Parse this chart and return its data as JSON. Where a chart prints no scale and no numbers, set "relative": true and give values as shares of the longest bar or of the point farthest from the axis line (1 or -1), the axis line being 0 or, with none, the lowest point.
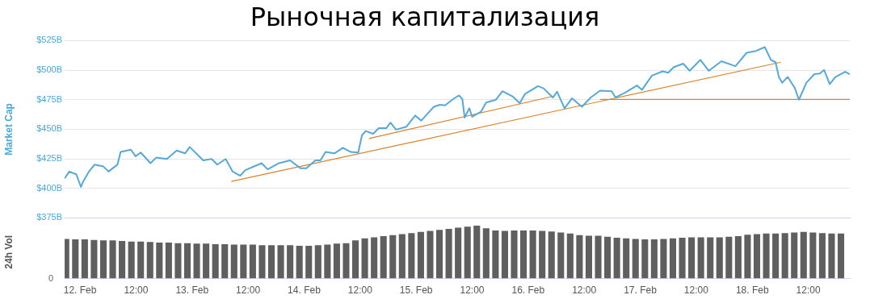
{
  "chart_data": [
    {
      "type": "line",
      "title": "Рыночная капитализация",
      "ylabel": "Market Cap",
      "xlim": [
        "--02-11T20:42",
        "--02-18T20:54"
      ],
      "ylim": [
        375,
        525
      ],
      "yticks": [
        {
          "value": 375,
          "label": "$375B"
        },
        {
          "value": 400,
          "label": "$400B"
        },
        {
          "value": 425,
          "label": "$425B"
        },
        {
          "value": 450,
          "label": "$450B"
        },
        {
          "value": 475,
          "label": "$475B"
        },
        {
          "value": 500,
          "label": "$500B"
        },
        {
          "value": 525,
          "label": "$525B"
        }
      ],
      "grid": "y",
      "legend": false,
      "tick_labels": "y",
      "marker": "none",
      "series": [
        {
          "color": "#56a9d6",
          "x": [
            "--02-11T20:42",
            "--02-11T21:42",
            "--02-11T23:12",
            "--02-12T00:12",
            "--02-12T00:42",
            "--02-12T01:54",
            "--02-12T03:06",
            "--02-12T05:00",
            "--02-12T06:06",
            "--02-12T08:00",
            "--02-12T08:42",
            "--02-12T10:54",
            "--02-12T11:54",
            "--02-12T13:00",
            "--02-12T15:06",
            "--02-12T16:18",
            "--02-12T18:36",
            "--02-12T20:42",
            "--02-12T22:30",
            "--02-12T23:30",
            "--02-13T02:24",
            "--02-13T04:12",
            "--02-13T05:24",
            "--02-13T07:12",
            "--02-13T08:42",
            "--02-13T10:18",
            "--02-13T11:24",
            "--02-13T14:54",
            "--02-13T16:12",
            "--02-13T18:36",
            "--02-13T21:00",
            "--02-13T23:12",
            "--02-14T00:30",
            "--02-14T02:24",
            "--02-14T03:30",
            "--02-14T04:36",
            "--02-14T06:30",
            "--02-14T08:18",
            "--02-14T10:00",
            "--02-14T11:36",
            "--02-14T12:24",
            "--02-14T13:12",
            "--02-14T14:48",
            "--02-14T16:00",
            "--02-14T17:36",
            "--02-14T18:30",
            "--02-14T19:42",
            "--02-14T21:54",
            "--02-14T23:48",
            "--02-15T01:06",
            "--02-15T03:06",
            "--02-15T03:48",
            "--02-15T05:06",
            "--02-15T06:12",
            "--02-15T07:54",
            "--02-15T09:12",
            "--02-15T09:54",
            "--02-15T10:24",
            "--02-15T11:24",
            "--02-15T12:00",
            "--02-15T13:54",
            "--02-15T15:00",
            "--02-15T17:06",
            "--02-15T18:30",
            "--02-15T20:48",
            "--02-15T22:12",
            "--02-15T23:18",
            "--02-16T02:06",
            "--02-16T03:18",
            "--02-16T05:18",
            "--02-16T06:12",
            "--02-16T07:48",
            "--02-16T09:24",
            "--02-16T11:30",
            "--02-16T13:24",
            "--02-16T15:24",
            "--02-16T17:54",
            "--02-16T18:42",
            "--02-16T20:48",
            "--02-16T23:18",
            "--02-17T00:24",
            "--02-17T02:30",
            "--02-17T04:48",
            "--02-17T06:00",
            "--02-17T07:12",
            "--02-17T09:12",
            "--02-17T10:36",
            "--02-17T12:54",
            "--02-17T14:42",
            "--02-17T17:24",
            "--02-17T20:24",
            "--02-17T22:48",
            "--02-18T00:48",
            "--02-18T02:42",
            "--02-18T04:00",
            "--02-18T05:00",
            "--02-18T05:42",
            "--02-18T06:24",
            "--02-18T07:36",
            "--02-18T09:06",
            "--02-18T10:00",
            "--02-18T11:36",
            "--02-18T13:18",
            "--02-18T14:30",
            "--02-18T15:24",
            "--02-18T16:36",
            "--02-18T17:48",
            "--02-18T19:54",
            "--02-18T20:54"
          ],
          "values": [
            408.3,
            414.2,
            411.9,
            401.2,
            406,
            414.2,
            420.1,
            418.5,
            414.2,
            420,
            430.8,
            432.7,
            427.2,
            430.3,
            421.3,
            426,
            424.9,
            432,
            429.6,
            435,
            423.7,
            424.9,
            420.1,
            424.9,
            414.2,
            410.7,
            415.4,
            421.3,
            416.1,
            421.3,
            423.7,
            417.1,
            417.1,
            423.7,
            423.7,
            430.8,
            429.6,
            434.3,
            430.8,
            430.3,
            445,
            448.5,
            446.2,
            450.9,
            450.9,
            455.6,
            449.7,
            452.1,
            461.6,
            457.3,
            466,
            469,
            470.7,
            470.2,
            475.5,
            478.6,
            475.5,
            459.9,
            467.8,
            460.6,
            464.9,
            472.6,
            475,
            482.2,
            477.4,
            472.1,
            479.8,
            486.5,
            484.6,
            476.9,
            481.7,
            467.8,
            476.2,
            469,
            476.9,
            482.7,
            482.2,
            476.9,
            481,
            487,
            483.4,
            495.4,
            499,
            497.8,
            502.6,
            505.5,
            499.5,
            508.7,
            499.5,
            507.5,
            503.4,
            514.7,
            516.3,
            519.5,
            508.7,
            506.7,
            494.2,
            489.4,
            494.2,
            485.1,
            475,
            489.4,
            496.6,
            497.1,
            500.2,
            488.2,
            494.2,
            498.6,
            496.6
          ]
        },
        {
          "type": "line",
          "color": "#d9822b",
          "x": [
            "--02-13T08:24",
            "--02-18T06:06"
          ],
          "values": [
            405.9,
            506.7
          ]
        },
        {
          "type": "line",
          "color": "#d9822b",
          "x": [
            "--02-14T13:54",
            "--02-16T05:18"
          ],
          "values": [
            442.2,
            477.9
          ]
        },
        {
          "type": "line",
          "color": "#d9822b",
          "x": [
            "--02-16T15:24",
            "--02-18T20:54"
          ],
          "values": [
            475.3,
            475.3
          ]
        }
      ]
    },
    {
      "type": "bar",
      "ylabel": "24h Vol",
      "relative": true,
      "annotations": [
        "0"
      ],
      "xlim": [
        "--02-11T20:42",
        "--02-18T20:54"
      ],
      "xticks": [
        {
          "value": "--02-12",
          "label": "12. Feb"
        },
        {
          "value": "--02-12T12:00",
          "label": "12:00"
        },
        {
          "value": "--02-13",
          "label": "13. Feb"
        },
        {
          "value": "--02-13T12:00",
          "label": "12:00"
        },
        {
          "value": "--02-14",
          "label": "14. Feb"
        },
        {
          "value": "--02-14T12:00",
          "label": "12:00"
        },
        {
          "value": "--02-15",
          "label": "15. Feb"
        },
        {
          "value": "--02-15T12:00",
          "label": "12:00"
        },
        {
          "value": "--02-16",
          "label": "16. Feb"
        },
        {
          "value": "--02-16T12:00",
          "label": "12:00"
        },
        {
          "value": "--02-17",
          "label": "17. Feb"
        },
        {
          "value": "--02-17T12:00",
          "label": "12:00"
        },
        {
          "value": "--02-18",
          "label": "18. Feb"
        },
        {
          "value": "--02-18T12:00",
          "label": "12:00"
        }
      ],
      "legend": false,
      "tick_labels": "x",
      "x": [
        "--02-11T21:00",
        "--02-11T23:00",
        "--02-12T01:00",
        "--02-12T03:00",
        "--02-12T05:00",
        "--02-12T07:00",
        "--02-12T09:00",
        "--02-12T11:00",
        "--02-12T13:00",
        "--02-12T15:00",
        "--02-12T17:00",
        "--02-12T19:00",
        "--02-12T21:00",
        "--02-12T23:00",
        "--02-13T01:00",
        "--02-13T03:00",
        "--02-13T05:00",
        "--02-13T07:00",
        "--02-13T09:00",
        "--02-13T11:00",
        "--02-13T13:00",
        "--02-13T15:00",
        "--02-13T17:00",
        "--02-13T19:00",
        "--02-13T21:00",
        "--02-13T23:00",
        "--02-14T01:00",
        "--02-14T03:00",
        "--02-14T05:00",
        "--02-14T07:00",
        "--02-14T09:00",
        "--02-14T11:00",
        "--02-14T13:00",
        "--02-14T15:00",
        "--02-14T17:00",
        "--02-14T19:00",
        "--02-14T21:00",
        "--02-14T23:00",
        "--02-15T01:00",
        "--02-15T03:00",
        "--02-15T05:00",
        "--02-15T07:00",
        "--02-15T09:00",
        "--02-15T11:00",
        "--02-15T13:00",
        "--02-15T15:00",
        "--02-15T17:00",
        "--02-15T19:00",
        "--02-15T21:00",
        "--02-15T23:00",
        "--02-16T01:00",
        "--02-16T03:00",
        "--02-16T05:00",
        "--02-16T07:00",
        "--02-16T09:00",
        "--02-16T11:00",
        "--02-16T13:00",
        "--02-16T15:00",
        "--02-16T17:00",
        "--02-16T19:00",
        "--02-16T21:00",
        "--02-16T23:00",
        "--02-17T01:00",
        "--02-17T03:00",
        "--02-17T05:00",
        "--02-17T07:00",
        "--02-17T09:00",
        "--02-17T11:00",
        "--02-17T13:00",
        "--02-17T15:00",
        "--02-17T17:00",
        "--02-17T19:00",
        "--02-17T21:00",
        "--02-17T23:00",
        "--02-18T01:00",
        "--02-18T03:00",
        "--02-18T05:00",
        "--02-18T07:00",
        "--02-18T09:00",
        "--02-18T11:00",
        "--02-18T13:00",
        "--02-18T15:00",
        "--02-18T17:00",
        "--02-18T19:00"
      ],
      "series": [
        {
          "color": "#5f5f5f",
          "values": [
            0.75,
            0.74,
            0.74,
            0.73,
            0.72,
            0.72,
            0.71,
            0.7,
            0.7,
            0.69,
            0.68,
            0.68,
            0.67,
            0.67,
            0.66,
            0.66,
            0.65,
            0.65,
            0.64,
            0.64,
            0.64,
            0.63,
            0.63,
            0.63,
            0.63,
            0.62,
            0.62,
            0.63,
            0.64,
            0.66,
            0.67,
            0.72,
            0.76,
            0.78,
            0.8,
            0.82,
            0.84,
            0.86,
            0.88,
            0.9,
            0.92,
            0.94,
            0.96,
            0.98,
            1,
            0.95,
            0.91,
            0.9,
            0.91,
            0.91,
            0.91,
            0.9,
            0.89,
            0.87,
            0.85,
            0.82,
            0.81,
            0.81,
            0.79,
            0.77,
            0.76,
            0.75,
            0.74,
            0.74,
            0.75,
            0.76,
            0.77,
            0.78,
            0.78,
            0.78,
            0.78,
            0.79,
            0.8,
            0.83,
            0.84,
            0.85,
            0.85,
            0.86,
            0.87,
            0.88,
            0.87,
            0.86,
            0.85,
            0.85
          ]
        }
      ]
    }
  ]
}
